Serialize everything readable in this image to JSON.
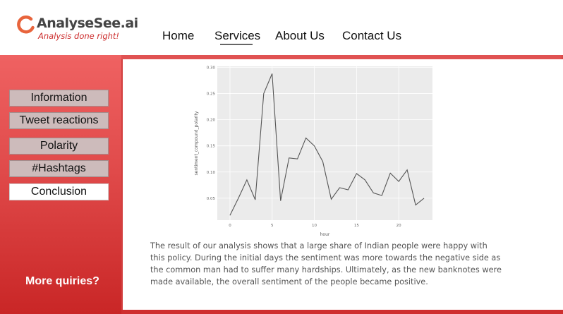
{
  "brand": {
    "name": "AnalyseSee.ai",
    "tagline": "Analysis done right!",
    "colors": {
      "accent": "#e8643c",
      "brand_red": "#cc2c2c",
      "sidebar_red": "#e04a4a"
    }
  },
  "nav": {
    "items": [
      {
        "label": "Home"
      },
      {
        "label": "Services",
        "active": true
      },
      {
        "label": "About Us"
      },
      {
        "label": "Contact Us"
      }
    ]
  },
  "sidebar": {
    "items": [
      {
        "label": "Information"
      },
      {
        "label": "Tweet reactions"
      },
      {
        "label": "Polarity"
      },
      {
        "label": "#Hashtags"
      },
      {
        "label": "Conclusion",
        "active": true
      }
    ],
    "more": "More quiries?"
  },
  "chart_data": {
    "type": "line",
    "xlabel": "hour",
    "ylabel": "sentiment_compound_polarity",
    "x": [
      0,
      1,
      2,
      3,
      4,
      5,
      6,
      7,
      8,
      9,
      10,
      11,
      12,
      13,
      14,
      15,
      16,
      17,
      18,
      19,
      20,
      21,
      22,
      23
    ],
    "y": [
      0.017,
      0.05,
      0.085,
      0.047,
      0.25,
      0.288,
      0.045,
      0.127,
      0.125,
      0.165,
      0.15,
      0.12,
      0.048,
      0.07,
      0.066,
      0.097,
      0.085,
      0.06,
      0.055,
      0.098,
      0.082,
      0.104,
      0.037,
      0.05
    ],
    "xticks": [
      "0",
      "5",
      "10",
      "15",
      "20"
    ],
    "yticks": [
      "0.05",
      "0.10",
      "0.15",
      "0.20",
      "0.25",
      "0.30"
    ],
    "xlim": [
      -1.5,
      24
    ],
    "ylim": [
      0.008,
      0.302
    ],
    "grid": true
  },
  "conclusion_text": "The result of our analysis shows that a large share of Indian people were happy with this policy. During the initial days the sentiment was more towards the negative side as the common man had to suffer many hardships. Ultimately, as the new banknotes were made available, the overall sentiment of the people became positive."
}
